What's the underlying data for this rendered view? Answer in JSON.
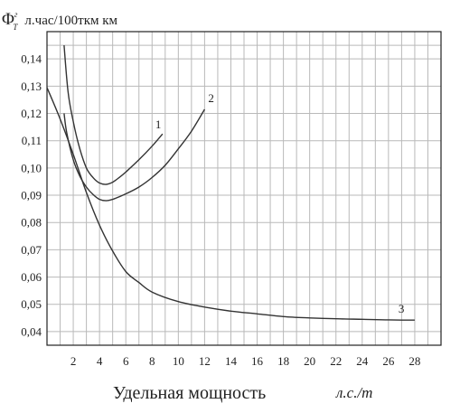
{
  "chart_data": {
    "type": "line",
    "ylabel_symbol": "Φ",
    "ylabel_sup": "г",
    "ylabel_sub": "Т",
    "ylabel_unit": "л.час/100ткм км",
    "xlabel": "Удельная мощность",
    "xlabel_unit": "л.с./т",
    "x_ticks": [
      2,
      4,
      6,
      8,
      10,
      12,
      14,
      16,
      18,
      20,
      22,
      24,
      26,
      28
    ],
    "y_ticks": [
      "0,04",
      "0,05",
      "0,06",
      "0,07",
      "0,08",
      "0,09",
      "0,10",
      "0,11",
      "0,12",
      "0,13",
      "0,14"
    ],
    "y_tick_values": [
      0.04,
      0.05,
      0.06,
      0.07,
      0.08,
      0.09,
      0.1,
      0.11,
      0.12,
      0.13,
      0.14
    ],
    "xlim": [
      0,
      30
    ],
    "ylim": [
      0.035,
      0.15
    ],
    "grid": true,
    "series": [
      {
        "name": "1",
        "x": [
          1.3,
          1.6,
          2.0,
          2.5,
          3.0,
          3.5,
          4.0,
          4.5,
          5.0,
          5.5,
          6.0,
          7.0,
          8.0,
          8.8
        ],
        "y": [
          0.145,
          0.128,
          0.117,
          0.107,
          0.1,
          0.0965,
          0.0945,
          0.094,
          0.0948,
          0.0965,
          0.0985,
          0.103,
          0.108,
          0.1125
        ]
      },
      {
        "name": "2",
        "x": [
          1.3,
          1.5,
          2.0,
          2.5,
          3.0,
          3.5,
          4.0,
          4.5,
          5.0,
          6.0,
          7.0,
          8.0,
          9.0,
          10.0,
          11.0,
          12.0
        ],
        "y": [
          0.12,
          0.113,
          0.103,
          0.097,
          0.093,
          0.0903,
          0.0885,
          0.088,
          0.0885,
          0.0905,
          0.093,
          0.0965,
          0.101,
          0.107,
          0.1135,
          0.1215
        ]
      },
      {
        "name": "3",
        "x": [
          0.0,
          1.0,
          2.0,
          3.0,
          4.0,
          5.0,
          6.0,
          7.0,
          8.0,
          10.0,
          12.0,
          14.0,
          16.0,
          18.0,
          20.0,
          22.0,
          24.0,
          26.0,
          28.0
        ],
        "y": [
          0.1295,
          0.118,
          0.105,
          0.091,
          0.079,
          0.0695,
          0.062,
          0.058,
          0.0545,
          0.051,
          0.049,
          0.0475,
          0.0465,
          0.0455,
          0.045,
          0.0447,
          0.0445,
          0.0443,
          0.0442
        ]
      }
    ]
  }
}
